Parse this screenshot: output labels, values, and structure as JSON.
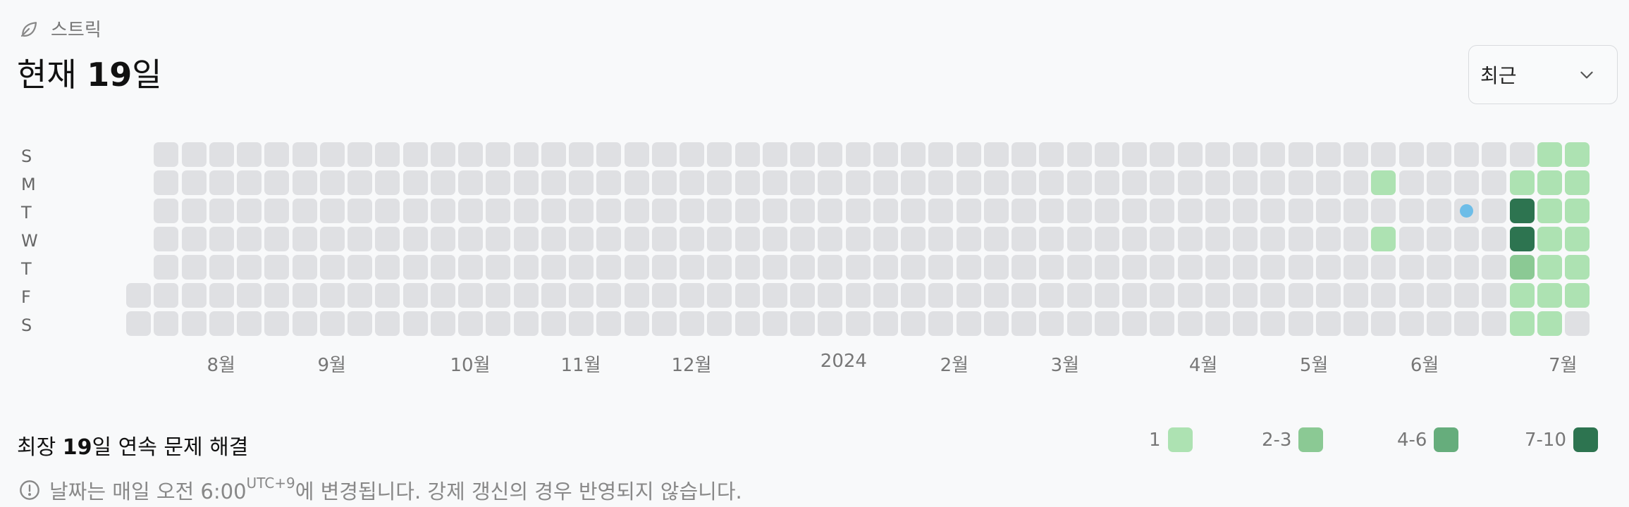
{
  "header": {
    "icon": "leaf-icon",
    "label": "스트릭"
  },
  "title": {
    "prefix": "현재 ",
    "count": "19",
    "suffix": "일"
  },
  "dropdown": {
    "selected": "최근",
    "icon": "chevron-down-icon"
  },
  "day_labels": [
    "S",
    "M",
    "T",
    "W",
    "T",
    "F",
    "S"
  ],
  "heatmap": {
    "columns": 53,
    "first_column_start_row": 5,
    "last_column_end_row": 6,
    "colors": {
      "empty": "#dfe0e3",
      "l1": "#ade2b2",
      "l2": "#8bc994",
      "l3": "#66ad7c",
      "l4": "#2d7450",
      "marker": "#6dbde8"
    },
    "active_cells": [
      {
        "col": 45,
        "row": 1,
        "level": 1
      },
      {
        "col": 45,
        "row": 3,
        "level": 1
      },
      {
        "col": 48,
        "row": 2,
        "marker": true
      },
      {
        "col": 50,
        "row": 1,
        "level": 1
      },
      {
        "col": 50,
        "row": 2,
        "level": 4
      },
      {
        "col": 50,
        "row": 3,
        "level": 4
      },
      {
        "col": 50,
        "row": 4,
        "level": 2
      },
      {
        "col": 50,
        "row": 5,
        "level": 1
      },
      {
        "col": 50,
        "row": 6,
        "level": 1
      },
      {
        "col": 51,
        "row": 0,
        "level": 1
      },
      {
        "col": 51,
        "row": 1,
        "level": 1
      },
      {
        "col": 51,
        "row": 2,
        "level": 1
      },
      {
        "col": 51,
        "row": 3,
        "level": 1
      },
      {
        "col": 51,
        "row": 4,
        "level": 1
      },
      {
        "col": 51,
        "row": 5,
        "level": 1
      },
      {
        "col": 51,
        "row": 6,
        "level": 1
      },
      {
        "col": 52,
        "row": 0,
        "level": 1
      },
      {
        "col": 52,
        "row": 1,
        "level": 1
      },
      {
        "col": 52,
        "row": 2,
        "level": 1
      },
      {
        "col": 52,
        "row": 3,
        "level": 1
      },
      {
        "col": 52,
        "row": 4,
        "level": 1
      },
      {
        "col": 52,
        "row": 5,
        "level": 1
      }
    ],
    "months": [
      {
        "label": "8월",
        "col": 3
      },
      {
        "label": "9월",
        "col": 7
      },
      {
        "label": "10월",
        "col": 12
      },
      {
        "label": "11월",
        "col": 16
      },
      {
        "label": "12월",
        "col": 20
      },
      {
        "label": "2024",
        "col": 25.5
      },
      {
        "label": "2월",
        "col": 29.5
      },
      {
        "label": "3월",
        "col": 33.5
      },
      {
        "label": "4월",
        "col": 38.5
      },
      {
        "label": "5월",
        "col": 42.5
      },
      {
        "label": "6월",
        "col": 46.5
      },
      {
        "label": "7월",
        "col": 51.5
      }
    ]
  },
  "longest": {
    "prefix": "최장 ",
    "count": "19",
    "suffix": "일 연속 문제 해결"
  },
  "legend": [
    {
      "label": "1",
      "color": "#ade2b2"
    },
    {
      "label": "2-3",
      "color": "#8bc994"
    },
    {
      "label": "4-6",
      "color": "#66ad7c"
    },
    {
      "label": "7-10",
      "color": "#2d7450"
    }
  ],
  "note": {
    "icon": "info-icon",
    "text_before": "날짜는 매일 오전 6:00",
    "tz": "UTC+9",
    "text_after": "에 변경됩니다. 강제 갱신의 경우 반영되지 않습니다."
  }
}
